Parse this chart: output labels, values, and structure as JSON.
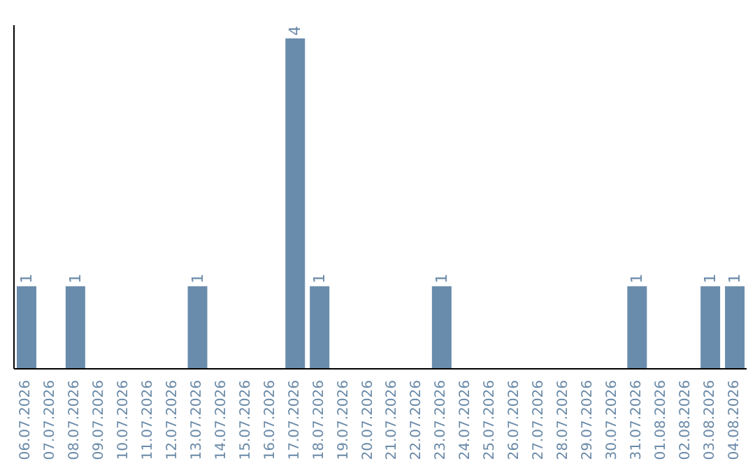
{
  "chart_data": {
    "type": "bar",
    "categories": [
      "06.07.2026",
      "07.07.2026",
      "08.07.2026",
      "09.07.2026",
      "10.07.2026",
      "11.07.2026",
      "12.07.2026",
      "13.07.2026",
      "14.07.2026",
      "15.07.2026",
      "16.07.2026",
      "17.07.2026",
      "18.07.2026",
      "19.07.2026",
      "20.07.2026",
      "21.07.2026",
      "22.07.2026",
      "23.07.2026",
      "24.07.2026",
      "25.07.2026",
      "26.07.2026",
      "27.07.2026",
      "28.07.2026",
      "29.07.2026",
      "30.07.2026",
      "31.07.2026",
      "01.08.2026",
      "02.08.2026",
      "03.08.2026",
      "04.08.2026"
    ],
    "values": [
      1,
      0,
      1,
      0,
      0,
      0,
      0,
      1,
      0,
      0,
      0,
      4,
      1,
      0,
      0,
      0,
      0,
      1,
      0,
      0,
      0,
      0,
      0,
      0,
      0,
      1,
      0,
      0,
      1,
      1
    ],
    "value_labels": [
      "1",
      null,
      "1",
      null,
      null,
      null,
      null,
      "1",
      null,
      null,
      null,
      "4",
      "1",
      null,
      null,
      null,
      null,
      "1",
      null,
      null,
      null,
      null,
      null,
      null,
      null,
      "1",
      null,
      null,
      "1",
      "1"
    ],
    "color": "#6a8cac",
    "ylim": [
      0,
      4.16
    ],
    "tick_labels": "x",
    "grid": false,
    "legend": false
  }
}
